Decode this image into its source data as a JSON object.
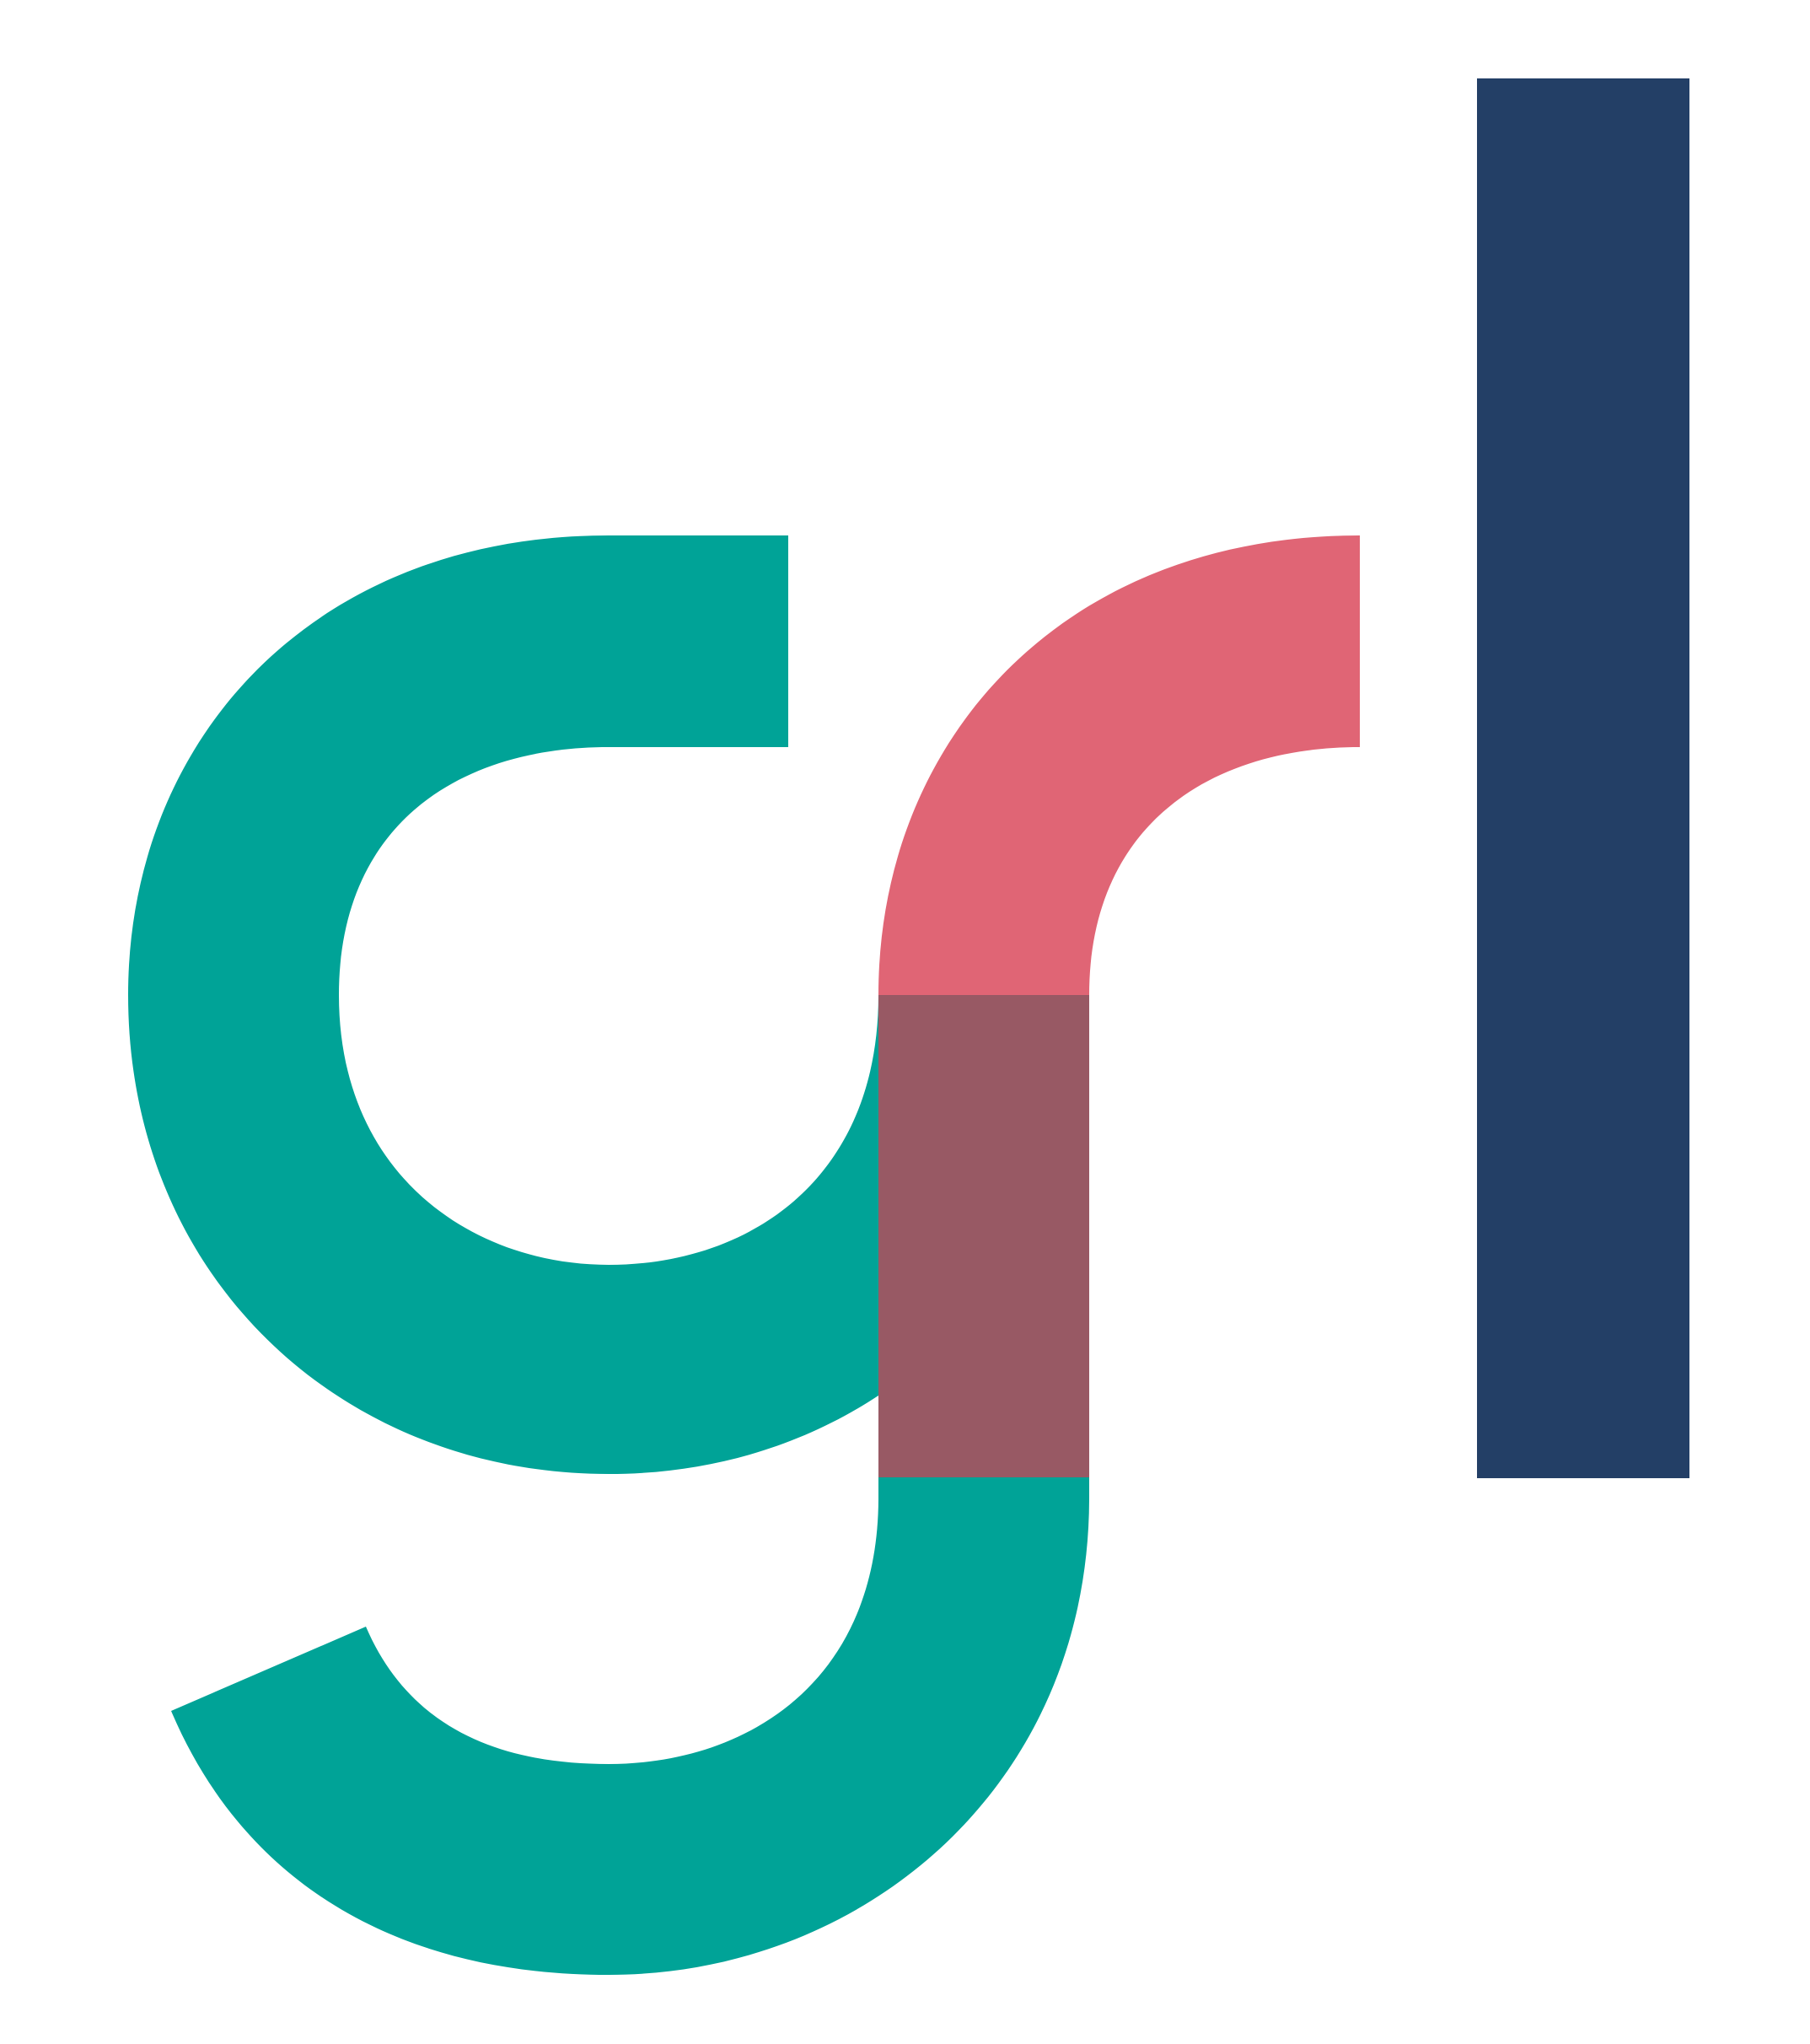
{
  "logo": {
    "lettering": "grl",
    "colors": {
      "background": "#ffffff",
      "g_letter": "#00A397",
      "r_arc": "#E06575",
      "overlap": "#985964",
      "l_bar": "#233F66"
    }
  }
}
